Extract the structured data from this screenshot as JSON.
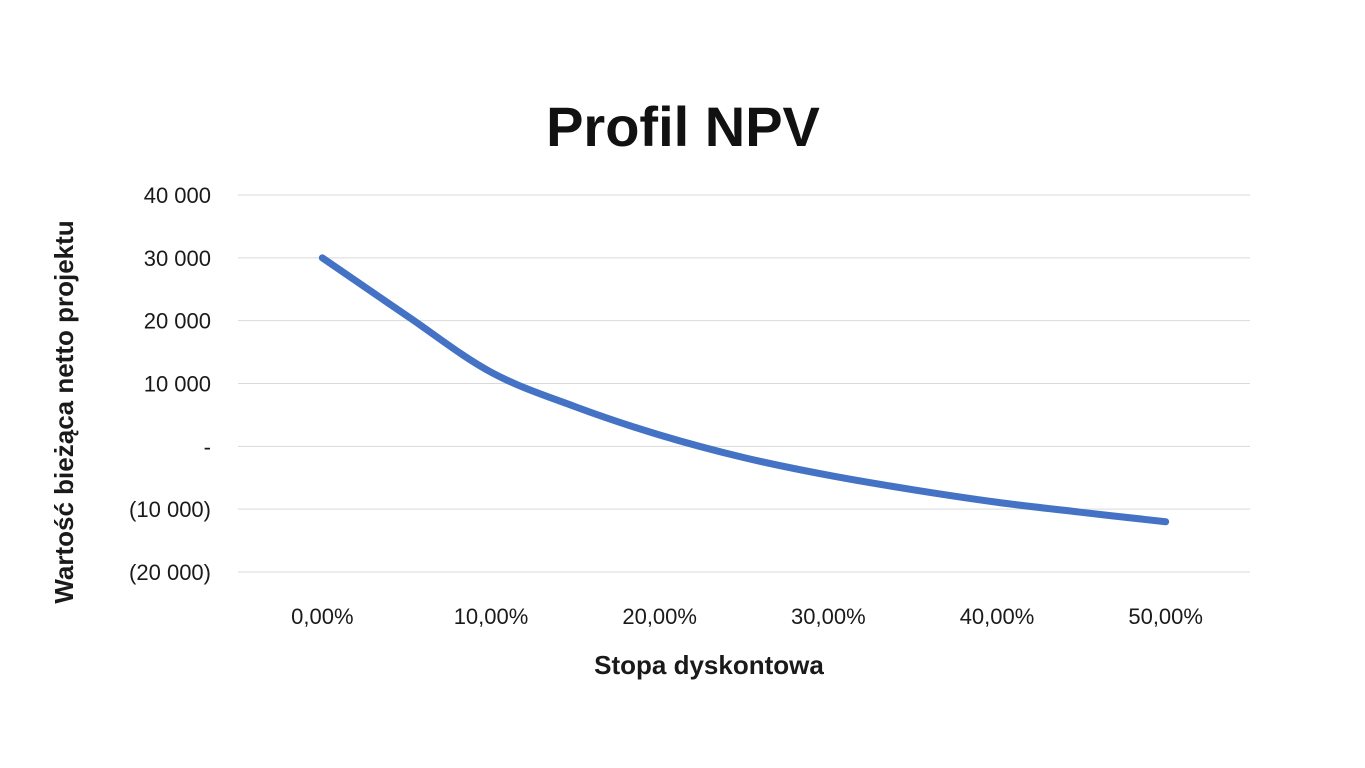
{
  "chart_data": {
    "type": "line",
    "title": "Profil NPV",
    "xlabel": "Stopa dyskontowa",
    "ylabel": "Wartość bieżąca netto projektu",
    "x": [
      0,
      5,
      10,
      15,
      20,
      25,
      30,
      35,
      40,
      45,
      50
    ],
    "x_tick_values": [
      0,
      10,
      20,
      30,
      40,
      50
    ],
    "x_tick_labels": [
      "0,00%",
      "10,00%",
      "20,00%",
      "30,00%",
      "40,00%",
      "50,00%"
    ],
    "xlim": [
      -5,
      55
    ],
    "ylim": [
      -20000,
      40000
    ],
    "y_tick_values": [
      40000,
      30000,
      20000,
      10000,
      0,
      -10000,
      -20000
    ],
    "y_tick_labels": [
      "40 000",
      "30 000",
      "20 000",
      "10 000",
      "-",
      "(10 000)",
      "(20 000)"
    ],
    "grid": "horizontal",
    "legend": "none",
    "series": [
      {
        "values": [
          30000,
          20800,
          11800,
          6300,
          1800,
          -1800,
          -4600,
          -6900,
          -8900,
          -10500,
          -12000
        ],
        "color": "#4472C4"
      }
    ]
  }
}
